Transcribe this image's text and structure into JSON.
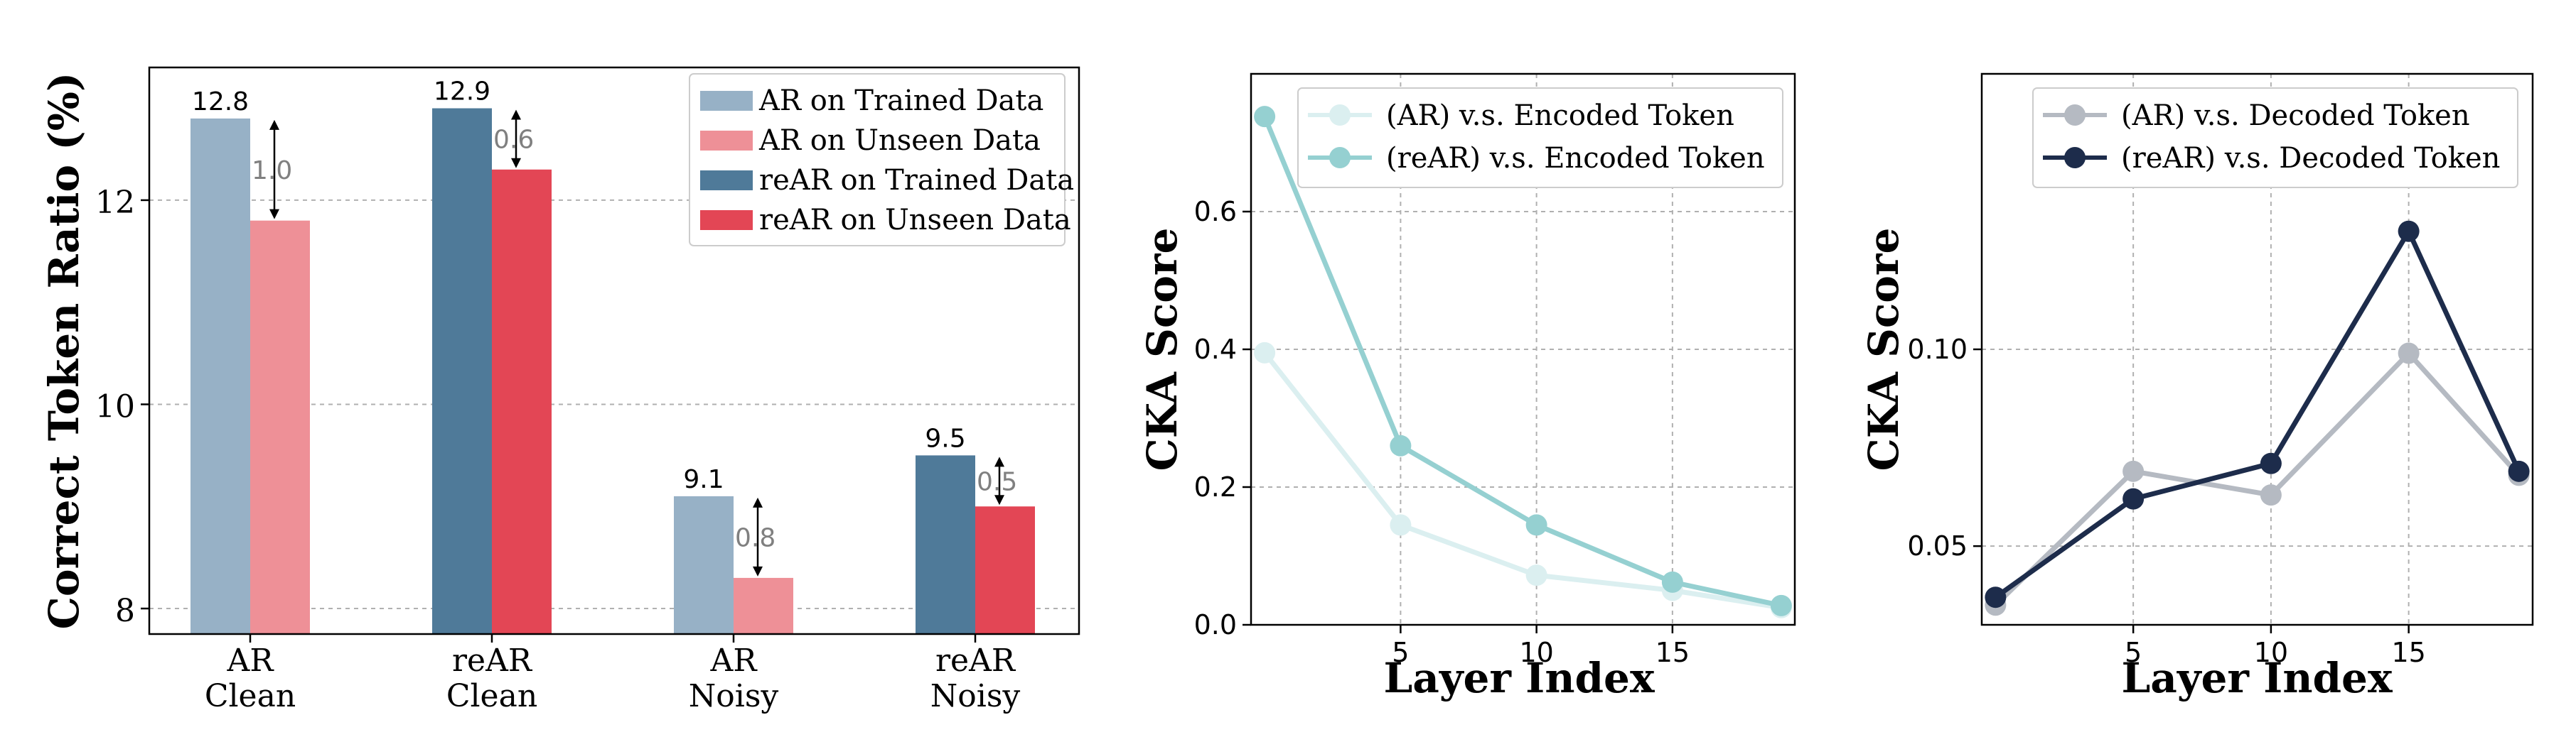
{
  "chart_data": [
    {
      "type": "bar",
      "ylabel": "Correct Token Ratio (%)",
      "ylim": [
        7.75,
        13.3
      ],
      "yticks": [
        8,
        10,
        12
      ],
      "categories": [
        "AR\nClean",
        "reAR\nClean",
        "AR\nNoisy",
        "reAR\nNoisy"
      ],
      "series": [
        {
          "name": "AR on Trained Data",
          "color": "#97b1c6",
          "values": [
            12.8,
            null,
            9.1,
            null
          ]
        },
        {
          "name": "AR on Unseen Data",
          "color": "#ee9097",
          "values": [
            11.8,
            null,
            8.3,
            null
          ]
        },
        {
          "name": "reAR on Trained Data",
          "color": "#4f7a99",
          "values": [
            null,
            12.9,
            null,
            9.5
          ]
        },
        {
          "name": "reAR on Unseen Data",
          "color": "#e34655",
          "values": [
            null,
            12.3,
            null,
            9.0
          ]
        }
      ],
      "value_labels": [
        "12.8",
        "12.9",
        "9.1",
        "9.5"
      ],
      "gap_labels": [
        "1.0",
        "0.6",
        "0.8",
        "0.5"
      ],
      "legend": "top-right",
      "grid": true
    },
    {
      "type": "line",
      "xlabel": "Layer Index",
      "ylabel": "CKA Score",
      "xlim": [
        -0.5,
        19.5
      ],
      "ylim": [
        0.0,
        0.8
      ],
      "xticks": [
        5,
        10,
        15
      ],
      "yticks": [
        0.0,
        0.2,
        0.4,
        0.6
      ],
      "ytick_labels": [
        "0.0",
        "0.2",
        "0.4",
        "0.6"
      ],
      "x": [
        0,
        5,
        10,
        15,
        19
      ],
      "series": [
        {
          "name": "(AR) v.s. Encoded Token",
          "color": "#dbeff0",
          "values": [
            0.395,
            0.145,
            0.072,
            0.05,
            0.025
          ]
        },
        {
          "name": "(reAR) v.s. Encoded Token",
          "color": "#95d0d1",
          "values": [
            0.738,
            0.26,
            0.145,
            0.062,
            0.028
          ]
        }
      ],
      "legend": "top-right",
      "grid": true
    },
    {
      "type": "line",
      "xlabel": "Layer Index",
      "ylabel": "CKA Score",
      "xlim": [
        -0.5,
        19.5
      ],
      "ylim": [
        0.03,
        0.17
      ],
      "xticks": [
        5,
        10,
        15
      ],
      "yticks": [
        0.05,
        0.1
      ],
      "ytick_labels": [
        "0.05",
        "0.10"
      ],
      "x": [
        0,
        5,
        10,
        15,
        19
      ],
      "series": [
        {
          "name": "(AR) v.s. Decoded Token",
          "color": "#b5bac2",
          "values": [
            0.035,
            0.069,
            0.063,
            0.099,
            0.068
          ]
        },
        {
          "name": "(reAR) v.s. Decoded Token",
          "color": "#1d2c4b",
          "values": [
            0.037,
            0.062,
            0.071,
            0.13,
            0.069
          ]
        }
      ],
      "legend": "top-right",
      "grid": true
    }
  ]
}
